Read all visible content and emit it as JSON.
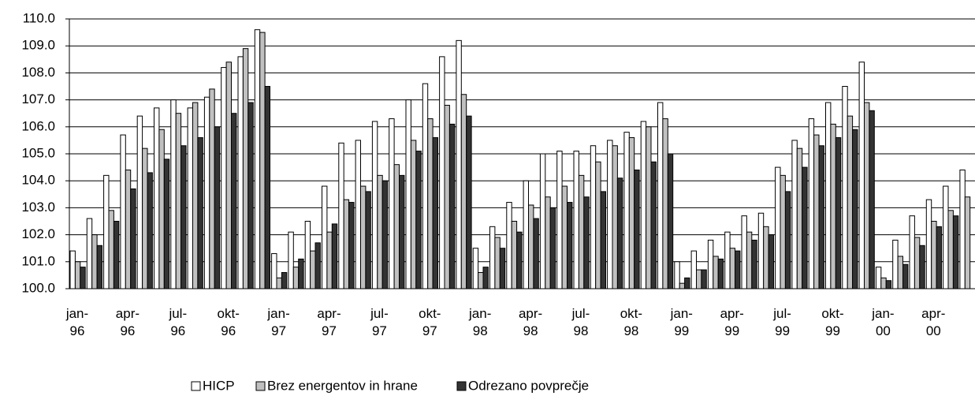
{
  "chart_data": {
    "type": "bar",
    "categories": [
      "jan-96",
      null,
      null,
      "apr-96",
      null,
      null,
      "jul-96",
      null,
      null,
      "okt-96",
      null,
      null,
      "jan-97",
      null,
      null,
      "apr-97",
      null,
      null,
      "jul-97",
      null,
      null,
      "okt-97",
      null,
      null,
      "jan-98",
      null,
      null,
      "apr-98",
      null,
      null,
      "jul-98",
      null,
      null,
      "okt-98",
      null,
      null,
      "jan-99",
      null,
      null,
      "apr-99",
      null,
      null,
      "jul-99",
      null,
      null,
      "okt-99",
      null,
      null,
      "jan-00",
      null,
      null,
      "apr-00",
      null,
      null
    ],
    "series": [
      {
        "name": "HICP",
        "color": "#ffffff",
        "values": [
          101.4,
          102.6,
          104.2,
          105.7,
          106.4,
          106.7,
          107.0,
          106.7,
          107.1,
          108.2,
          108.6,
          109.6,
          101.3,
          102.1,
          102.5,
          103.8,
          105.4,
          105.5,
          106.2,
          106.3,
          107.0,
          107.6,
          108.6,
          109.2,
          101.5,
          102.3,
          103.2,
          104.0,
          105.0,
          105.1,
          105.1,
          105.3,
          105.5,
          105.8,
          106.2,
          106.9,
          101.0,
          101.4,
          101.8,
          102.1,
          102.7,
          102.8,
          104.5,
          105.5,
          106.3,
          106.9,
          107.5,
          108.4,
          100.8,
          101.8,
          102.7,
          103.3,
          103.8,
          104.4
        ]
      },
      {
        "name": "Brez energentov in hrane",
        "color": "#c0c0c0",
        "values": [
          101.0,
          102.0,
          102.9,
          104.4,
          105.2,
          105.9,
          106.5,
          106.9,
          107.4,
          108.4,
          108.9,
          109.5,
          100.4,
          100.8,
          101.4,
          102.1,
          103.3,
          103.8,
          104.2,
          104.6,
          105.5,
          106.3,
          106.8,
          107.2,
          100.6,
          101.9,
          102.5,
          103.1,
          103.4,
          103.8,
          104.2,
          104.7,
          105.3,
          105.6,
          106.0,
          106.3,
          100.2,
          100.7,
          101.2,
          101.5,
          102.1,
          102.3,
          104.2,
          105.2,
          105.7,
          106.1,
          106.4,
          106.9,
          100.4,
          101.2,
          101.9,
          102.5,
          102.9,
          103.4
        ]
      },
      {
        "name": "Odrezano povprečje",
        "color": "#333333",
        "values": [
          100.8,
          101.6,
          102.5,
          103.7,
          104.3,
          104.8,
          105.3,
          105.6,
          106.0,
          106.5,
          106.9,
          107.5,
          100.6,
          101.1,
          101.7,
          102.4,
          103.2,
          103.6,
          104.0,
          104.2,
          105.1,
          105.6,
          106.1,
          106.4,
          100.8,
          101.5,
          102.1,
          102.6,
          103.0,
          103.2,
          103.4,
          103.6,
          104.1,
          104.4,
          104.7,
          105.0,
          100.4,
          100.7,
          101.1,
          101.4,
          101.8,
          102.0,
          103.6,
          104.5,
          105.3,
          105.6,
          105.9,
          106.6,
          100.3,
          100.9,
          101.6,
          102.3,
          102.7,
          null
        ]
      }
    ],
    "ylim": [
      100,
      110
    ],
    "yticks": [
      {
        "value": 100,
        "label": "100.0"
      },
      {
        "value": 101,
        "label": "101.0"
      },
      {
        "value": 102,
        "label": "102.0"
      },
      {
        "value": 103,
        "label": "103.0"
      },
      {
        "value": 104,
        "label": "104.0"
      },
      {
        "value": 105,
        "label": "105.0"
      },
      {
        "value": 106,
        "label": "106.0"
      },
      {
        "value": 107,
        "label": "107.0"
      },
      {
        "value": 108,
        "label": "108.0"
      },
      {
        "value": 109,
        "label": "109.0"
      },
      {
        "value": 110,
        "label": "110.0"
      }
    ],
    "grid": true,
    "legend": "bottom"
  }
}
